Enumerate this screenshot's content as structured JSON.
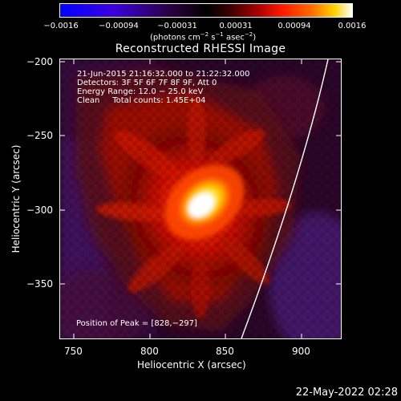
{
  "colorbar": {
    "ticks": [
      "−0.0016",
      "−0.00094",
      "−0.00031",
      "0.00031",
      "0.00094",
      "0.0016"
    ],
    "unit_prefix": "(photons cm",
    "unit_exp1": "−2",
    "unit_mid": " s",
    "unit_exp2": "−1",
    "unit_mid2": " asec",
    "unit_exp3": "−2",
    "unit_suffix": ")"
  },
  "title": "Reconstructed RHESSI Image",
  "annotations": {
    "line1": "21-Jun-2015 21:16:32.000 to 21:22:32.000",
    "line2": "Detectors: 3F 5F 6F 7F 8F 9F, Att 0",
    "line3": "Energy Range: 12.0 − 25.0 keV",
    "line4": "Clean     Total counts: 1.45E+04",
    "peak": "Position of Peak = [828,−297]"
  },
  "axes": {
    "xlabel": "Heliocentric X (arcsec)",
    "ylabel": "Heliocentric Y (arcsec)",
    "x_ticks": [
      "750",
      "800",
      "850",
      "900"
    ],
    "y_ticks": [
      "−200",
      "−250",
      "−300",
      "−350"
    ]
  },
  "image": {
    "peak_x": 828,
    "peak_y": -297,
    "xlim": [
      737,
      927
    ],
    "ylim": [
      -389,
      -197
    ],
    "limb_color": "#ffffff"
  },
  "timestamp": "22-May-2022 02:28"
}
